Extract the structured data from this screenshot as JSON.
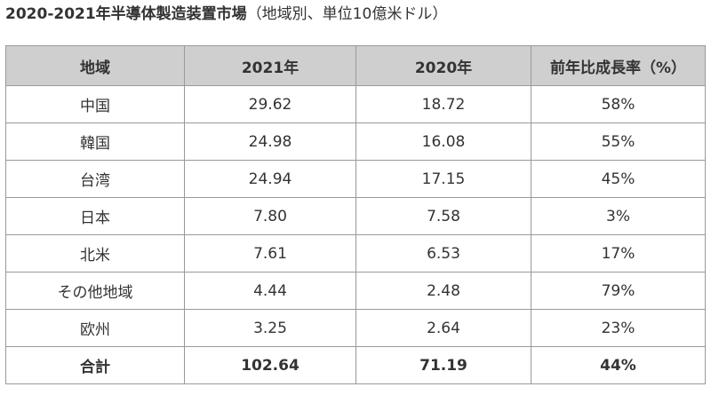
{
  "title": {
    "main": "2020-2021年半導体製造装置市場",
    "sub": "（地域別、単位10億米ドル）"
  },
  "table": {
    "headers": [
      "地域",
      "2021年",
      "2020年",
      "前年比成長率（%）"
    ],
    "rows": [
      [
        "中国",
        "29.62",
        "18.72",
        "58%"
      ],
      [
        "韓国",
        "24.98",
        "16.08",
        "55%"
      ],
      [
        "台湾",
        "24.94",
        "17.15",
        "45%"
      ],
      [
        "日本",
        "7.80",
        "7.58",
        "3%"
      ],
      [
        "北米",
        "7.61",
        "6.53",
        "17%"
      ],
      [
        "その他地域",
        "4.44",
        "2.48",
        "79%"
      ],
      [
        "欧州",
        "3.25",
        "2.64",
        "23%"
      ]
    ],
    "total": [
      "合計",
      "102.64",
      "71.19",
      "44%"
    ]
  }
}
